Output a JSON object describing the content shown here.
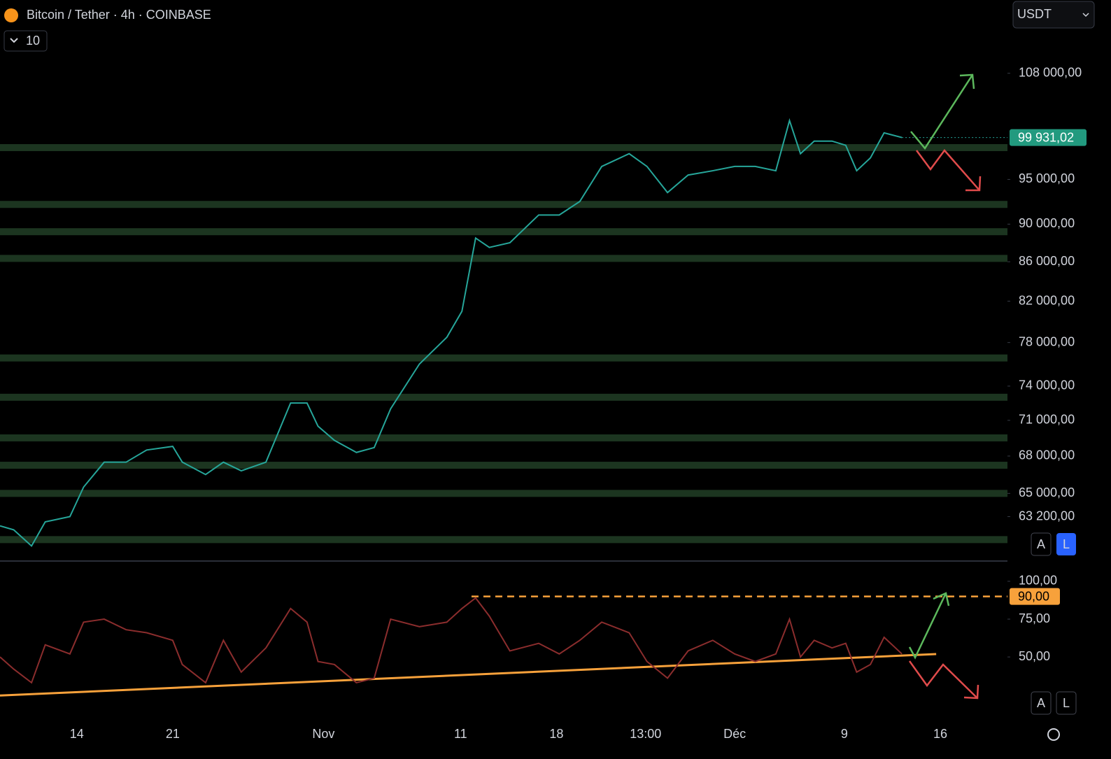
{
  "header": {
    "title": "Bitcoin / Tether · 4h · COINBASE",
    "indicator_count": "10",
    "currency": "USDT",
    "price_buttons": [
      "A",
      "L"
    ],
    "rsi_buttons": [
      "A",
      "L"
    ]
  },
  "chart_data": [
    {
      "type": "line",
      "log_scale": true,
      "xlim": [
        -5.6,
        67.9
      ],
      "ylim": [
        60000,
        118000
      ],
      "yticks": [
        {
          "value": 108000,
          "label": "108 000,00"
        },
        {
          "value": 95000,
          "label": "95 000,00"
        },
        {
          "value": 90000,
          "label": "90 000,00"
        },
        {
          "value": 86000,
          "label": "86 000,00"
        },
        {
          "value": 82000,
          "label": "82 000,00"
        },
        {
          "value": 78000,
          "label": "78 000,00"
        },
        {
          "value": 74000,
          "label": "74 000,00"
        },
        {
          "value": 71000,
          "label": "71 000,00"
        },
        {
          "value": 68000,
          "label": "68 000,00"
        },
        {
          "value": 65000,
          "label": "65 000,00"
        },
        {
          "value": 63200,
          "label": "63 200,00"
        }
      ],
      "levels": [
        98720,
        92170,
        89180,
        86350,
        76560,
        73010,
        69510,
        67250,
        65000,
        61470
      ],
      "level_color": "#1c3520",
      "series": [
        {
          "color": "#26a69a",
          "x": [
            -5.6,
            -4.6,
            -3.3,
            -2.3,
            -0.5,
            0.5,
            2.0,
            3.6,
            5.1,
            7.0,
            7.7,
            9.4,
            10.7,
            12.0,
            13.8,
            15.6,
            16.8,
            17.6,
            18.8,
            20.4,
            21.7,
            22.9,
            25.0,
            27.0,
            28.1,
            29.1,
            30.1,
            31.6,
            33.7,
            35.2,
            36.7,
            38.3,
            40.3,
            41.6,
            43.1,
            44.6,
            46.4,
            48.0,
            49.5,
            51.0,
            52.0,
            52.8,
            53.8,
            55.1,
            56.1,
            56.9,
            57.9,
            58.9,
            60.2
          ],
          "values": [
            62500,
            62200,
            61000,
            62800,
            63200,
            65500,
            67500,
            67500,
            68500,
            68800,
            67500,
            66500,
            67500,
            66800,
            67500,
            72500,
            72500,
            70500,
            69300,
            68300,
            68700,
            72000,
            76000,
            78500,
            81000,
            88500,
            87500,
            88000,
            91000,
            91000,
            92500,
            96500,
            98000,
            96500,
            93500,
            95500,
            96000,
            96500,
            96500,
            96000,
            102000,
            98000,
            99500,
            99500,
            99000,
            96000,
            97500,
            100500,
            99931.02
          ],
          "value_labels": [
            null,
            null,
            null,
            null,
            null,
            null,
            null,
            null,
            null,
            null,
            null,
            null,
            null,
            null,
            null,
            null,
            null,
            null,
            null,
            null,
            null,
            null,
            null,
            null,
            null,
            null,
            null,
            null,
            null,
            null,
            null,
            null,
            null,
            null,
            null,
            null,
            null,
            null,
            null,
            null,
            null,
            null,
            null,
            null,
            null,
            null,
            null,
            null,
            "99 931,02"
          ]
        }
      ]
    },
    {
      "type": "line",
      "xlim": [
        -5.6,
        67.9
      ],
      "ylim": [
        8,
        112
      ],
      "xticks": [
        {
          "value": 0,
          "label": "14"
        },
        {
          "value": 7,
          "label": "21"
        },
        {
          "value": 18,
          "label": "Nov"
        },
        {
          "value": 28,
          "label": "11"
        },
        {
          "value": 35,
          "label": "18"
        },
        {
          "value": 41.5,
          "label": "13:00"
        },
        {
          "value": 48,
          "label": "Déc"
        },
        {
          "value": 56,
          "label": "9"
        },
        {
          "value": 63,
          "label": "16"
        }
      ],
      "yticks": [
        {
          "value": 100,
          "label": "100,00"
        },
        {
          "value": 75,
          "label": "75,00"
        },
        {
          "value": 50,
          "label": "50,00"
        }
      ],
      "reference_line": {
        "value": 90,
        "label": "90,00",
        "x_start": 28.8,
        "color": "#f7a13b"
      },
      "trendline": {
        "x": [
          -5.6,
          62.7
        ],
        "values": [
          24.5,
          51.9
        ],
        "color": "#f7a13b"
      },
      "series": [
        {
          "color": "#8b2d2d",
          "x": [
            -5.6,
            -4.6,
            -3.3,
            -2.3,
            -0.5,
            0.5,
            2.0,
            3.6,
            5.1,
            7.0,
            7.7,
            9.4,
            10.7,
            12.0,
            13.8,
            15.6,
            16.8,
            17.6,
            18.8,
            20.4,
            21.7,
            22.9,
            25.0,
            27.0,
            28.1,
            29.1,
            30.1,
            31.6,
            33.7,
            35.2,
            36.7,
            38.3,
            40.3,
            41.6,
            43.1,
            44.6,
            46.4,
            48.0,
            49.5,
            51.0,
            52.0,
            52.8,
            53.8,
            55.1,
            56.1,
            56.9,
            57.9,
            58.9,
            60.2
          ],
          "values": [
            50,
            42,
            33,
            58,
            52,
            73,
            75,
            68,
            66,
            61,
            45,
            33,
            61,
            40,
            56,
            82,
            73,
            47,
            45,
            33,
            36,
            75,
            70,
            73,
            82,
            89,
            77,
            54,
            59,
            52,
            61,
            73,
            66,
            47,
            36,
            54,
            61,
            52,
            47,
            52,
            75,
            50,
            61,
            56,
            59,
            40,
            45,
            63,
            52
          ]
        }
      ]
    }
  ]
}
